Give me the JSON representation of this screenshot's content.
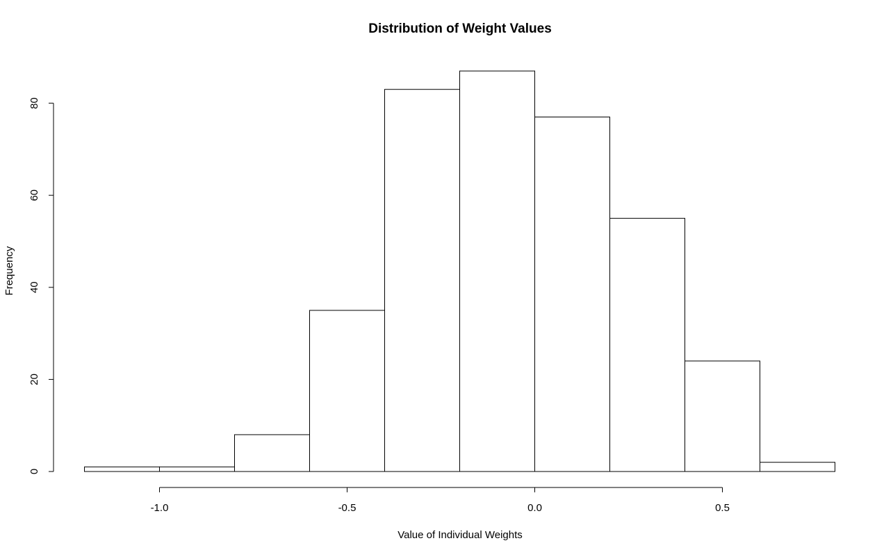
{
  "chart_data": {
    "type": "bar",
    "title": "Distribution of Weight Values",
    "xlabel": "Value of Individual Weights",
    "ylabel": "Frequency",
    "bins": [
      {
        "start": -1.2,
        "end": -1.0,
        "count": 1
      },
      {
        "start": -1.0,
        "end": -0.8,
        "count": 1
      },
      {
        "start": -0.8,
        "end": -0.6,
        "count": 8
      },
      {
        "start": -0.6,
        "end": -0.4,
        "count": 35
      },
      {
        "start": -0.4,
        "end": -0.2,
        "count": 83
      },
      {
        "start": -0.2,
        "end": 0.0,
        "count": 87
      },
      {
        "start": 0.0,
        "end": 0.2,
        "count": 77
      },
      {
        "start": 0.2,
        "end": 0.4,
        "count": 55
      },
      {
        "start": 0.4,
        "end": 0.6,
        "count": 24
      },
      {
        "start": 0.6,
        "end": 0.8,
        "count": 2
      }
    ],
    "xlim": [
      -1.2,
      0.8
    ],
    "ylim": [
      0,
      87
    ],
    "x_ticks": [
      -1.0,
      -0.5,
      0.0,
      0.5
    ],
    "x_tick_labels": [
      "-1.0",
      "-0.5",
      "0.0",
      "0.5"
    ],
    "y_ticks": [
      0,
      20,
      40,
      60,
      80
    ],
    "y_tick_labels": [
      "0",
      "20",
      "40",
      "60",
      "80"
    ],
    "grid": false,
    "bar_fill": "#ffffff",
    "bar_stroke": "#000000"
  }
}
